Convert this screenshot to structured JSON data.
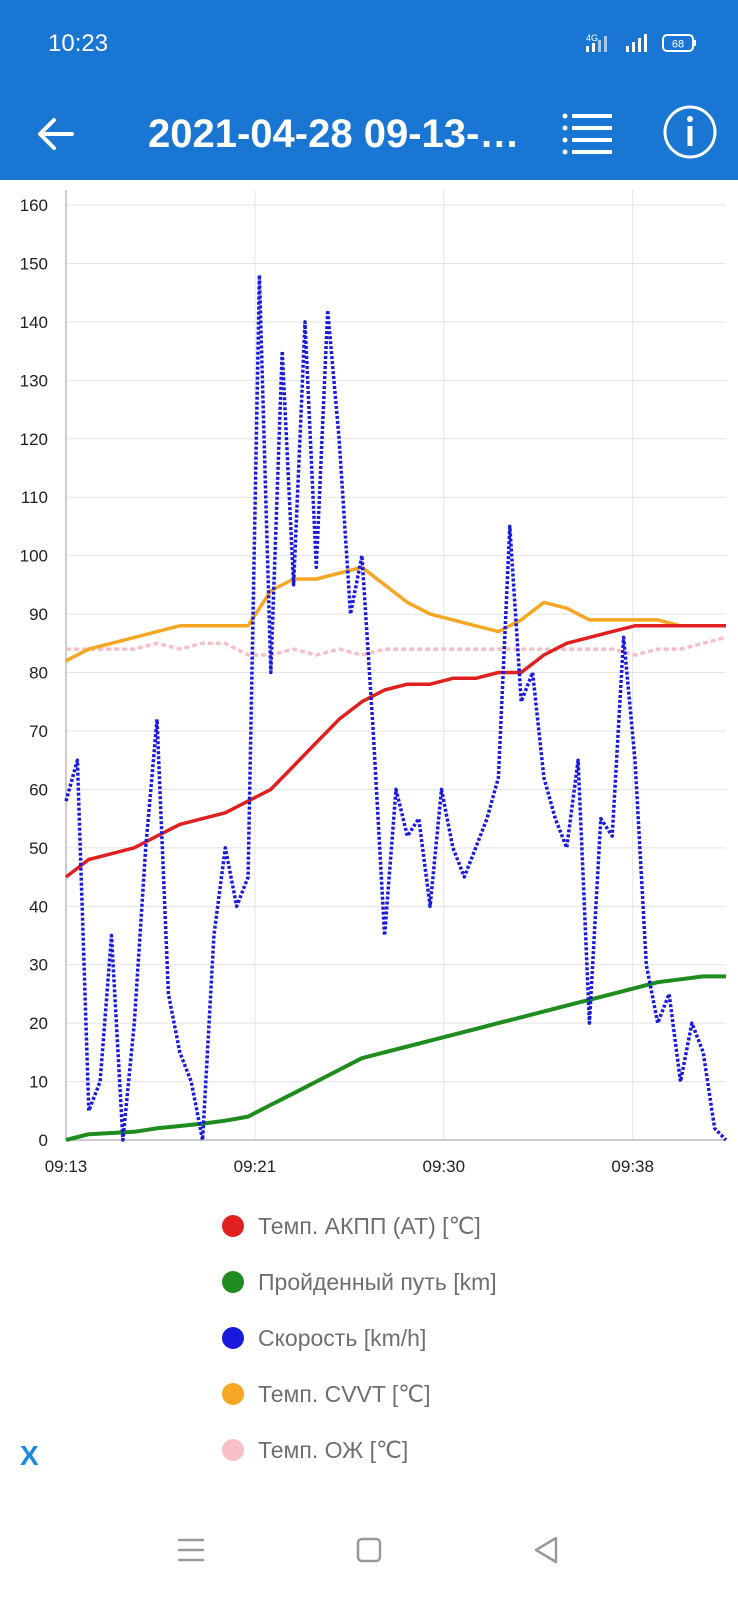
{
  "status_bar": {
    "time": "10:23",
    "network": "4G",
    "battery": "68"
  },
  "app_bar": {
    "title": "2021-04-28 09-13-…",
    "back_icon": "arrow-left-icon",
    "list_icon": "list-icon",
    "info_icon": "info-icon"
  },
  "chart_data": {
    "type": "line",
    "x_tick_labels": [
      "09:13",
      "09:21",
      "09:30",
      "09:38"
    ],
    "ylim": [
      0,
      160
    ],
    "y_ticks": [
      0,
      10,
      20,
      30,
      40,
      50,
      60,
      70,
      80,
      90,
      100,
      110,
      120,
      130,
      140,
      150,
      160
    ],
    "grid": true,
    "x_unit": "minutes",
    "xlim": [
      0,
      29
    ],
    "series": [
      {
        "name": "Темп. АКПП (AT) [℃]",
        "color": "#e02020",
        "x": [
          0,
          1,
          2,
          3,
          4,
          5,
          6,
          7,
          8,
          9,
          10,
          11,
          12,
          13,
          14,
          15,
          16,
          17,
          18,
          19,
          20,
          21,
          22,
          23,
          24,
          25,
          26,
          27,
          28,
          29
        ],
        "y": [
          45,
          48,
          49,
          50,
          52,
          54,
          55,
          56,
          58,
          60,
          64,
          68,
          72,
          75,
          77,
          78,
          78,
          79,
          79,
          80,
          80,
          83,
          85,
          86,
          87,
          88,
          88,
          88,
          88,
          88
        ]
      },
      {
        "name": "Пройденный путь [km]",
        "color": "#1e8c1e",
        "x": [
          0,
          1,
          2,
          3,
          4,
          5,
          6,
          7,
          8,
          9,
          10,
          11,
          12,
          13,
          14,
          15,
          16,
          17,
          18,
          19,
          20,
          21,
          22,
          23,
          24,
          25,
          26,
          27,
          28,
          29
        ],
        "y": [
          0,
          1,
          1.2,
          1.4,
          2,
          2.4,
          2.8,
          3.3,
          4,
          6,
          8,
          10,
          12,
          14,
          15,
          16,
          17,
          18,
          19,
          20,
          21,
          22,
          23,
          24,
          25,
          26,
          27,
          27.5,
          28,
          28
        ]
      },
      {
        "name": "Скорость [km/h]",
        "color": "#1a1adf",
        "x": [
          0,
          0.5,
          1,
          1.5,
          2,
          2.5,
          3,
          3.5,
          4,
          4.5,
          5,
          5.5,
          6,
          6.5,
          7,
          7.5,
          8,
          8.5,
          9,
          9.5,
          10,
          10.5,
          11,
          11.5,
          12,
          12.5,
          13,
          13.5,
          14,
          14.5,
          15,
          15.5,
          16,
          16.5,
          17,
          17.5,
          18,
          18.5,
          19,
          19.5,
          20,
          20.5,
          21,
          21.5,
          22,
          22.5,
          23,
          23.5,
          24,
          24.5,
          25,
          25.5,
          26,
          26.5,
          27,
          27.5,
          28,
          28.5,
          29
        ],
        "y": [
          58,
          65,
          5,
          10,
          35,
          0,
          20,
          50,
          72,
          25,
          15,
          10,
          0,
          35,
          50,
          40,
          45,
          148,
          80,
          135,
          95,
          140,
          98,
          142,
          120,
          90,
          100,
          70,
          35,
          60,
          52,
          55,
          40,
          60,
          50,
          45,
          50,
          55,
          62,
          105,
          75,
          80,
          62,
          55,
          50,
          65,
          20,
          55,
          52,
          86,
          65,
          30,
          20,
          25,
          10,
          20,
          15,
          2,
          0
        ]
      },
      {
        "name": "Темп. CVVT [℃]",
        "color": "#f5a623",
        "x": [
          0,
          1,
          2,
          3,
          4,
          5,
          6,
          7,
          8,
          9,
          10,
          11,
          12,
          13,
          14,
          15,
          16,
          17,
          18,
          19,
          20,
          21,
          22,
          23,
          24,
          25,
          26,
          27,
          28,
          29
        ],
        "y": [
          82,
          84,
          85,
          86,
          87,
          88,
          88,
          88,
          88,
          94,
          96,
          96,
          97,
          98,
          95,
          92,
          90,
          89,
          88,
          87,
          89,
          92,
          91,
          89,
          89,
          89,
          89,
          88,
          88,
          88
        ]
      },
      {
        "name": "Темп. ОЖ [℃]",
        "color": "#f7bfc8",
        "x": [
          0,
          1,
          2,
          3,
          4,
          5,
          6,
          7,
          8,
          9,
          10,
          11,
          12,
          13,
          14,
          15,
          16,
          17,
          18,
          19,
          20,
          21,
          22,
          23,
          24,
          25,
          26,
          27,
          28,
          29
        ],
        "y": [
          84,
          84,
          84,
          84,
          85,
          84,
          85,
          85,
          83,
          83,
          84,
          83,
          84,
          83,
          84,
          84,
          84,
          84,
          84,
          84,
          84,
          84,
          84,
          84,
          84,
          83,
          84,
          84,
          85,
          86
        ]
      }
    ]
  },
  "legend": [
    {
      "label": "Темп. АКПП (AT) [℃]",
      "color": "#e02020"
    },
    {
      "label": "Пройденный путь [km]",
      "color": "#1e8c1e"
    },
    {
      "label": "Скорость [km/h]",
      "color": "#1a1adf"
    },
    {
      "label": "Темп. CVVT [℃]",
      "color": "#f5a623"
    },
    {
      "label": "Темп. ОЖ [℃]",
      "color": "#f7bfc8"
    }
  ],
  "close_label": "X",
  "nav_bar": {
    "menu_icon": "menu-icon",
    "home_icon": "home-square-icon",
    "back_icon": "back-triangle-icon"
  }
}
